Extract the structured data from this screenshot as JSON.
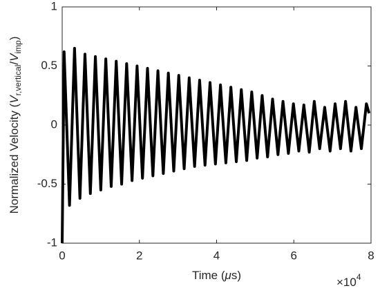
{
  "chart_data": {
    "type": "line",
    "xlabel_parts": [
      "Time (",
      "μ",
      "s)"
    ],
    "ylabel_parts": [
      "Normalized Velocity (",
      "V",
      "r,vertical",
      "/",
      "V",
      "imp",
      ")"
    ],
    "x_multiplier": [
      "×10",
      "4"
    ],
    "x": [
      0,
      0.05,
      0.19,
      0.32,
      0.46,
      0.59,
      0.73,
      0.86,
      1.0,
      1.13,
      1.27,
      1.4,
      1.54,
      1.67,
      1.81,
      1.94,
      2.08,
      2.21,
      2.35,
      2.48,
      2.62,
      2.75,
      2.89,
      3.02,
      3.16,
      3.29,
      3.43,
      3.56,
      3.7,
      3.83,
      3.97,
      4.1,
      4.24,
      4.37,
      4.51,
      4.64,
      4.78,
      4.91,
      5.05,
      5.18,
      5.32,
      5.45,
      5.59,
      5.72,
      5.86,
      5.99,
      6.13,
      6.26,
      6.4,
      6.53,
      6.67,
      6.8,
      6.94,
      7.07,
      7.21,
      7.34,
      7.48,
      7.61,
      7.75,
      7.88,
      7.95
    ],
    "values": [
      -1,
      0.62,
      -0.68,
      0.65,
      -0.62,
      0.6,
      -0.58,
      0.58,
      -0.55,
      0.56,
      -0.52,
      0.54,
      -0.5,
      0.52,
      -0.47,
      0.5,
      -0.45,
      0.48,
      -0.43,
      0.46,
      -0.41,
      0.44,
      -0.39,
      0.42,
      -0.37,
      0.4,
      -0.35,
      0.38,
      -0.34,
      0.36,
      -0.33,
      0.34,
      -0.32,
      0.32,
      -0.31,
      0.3,
      -0.3,
      0.28,
      -0.28,
      0.25,
      -0.27,
      0.22,
      -0.25,
      0.2,
      -0.24,
      0.18,
      -0.22,
      0.17,
      -0.23,
      0.2,
      -0.2,
      0.15,
      -0.22,
      0.18,
      -0.2,
      0.2,
      -0.22,
      0.15,
      -0.2,
      0.18,
      0.1
    ],
    "color": "#000000",
    "xlim": [
      0,
      8
    ],
    "xticks": [
      0,
      2,
      4,
      6,
      8
    ],
    "ylim": [
      -1,
      1
    ],
    "yticks": [
      -1,
      -0.5,
      0,
      0.5,
      1
    ],
    "grid": false
  }
}
